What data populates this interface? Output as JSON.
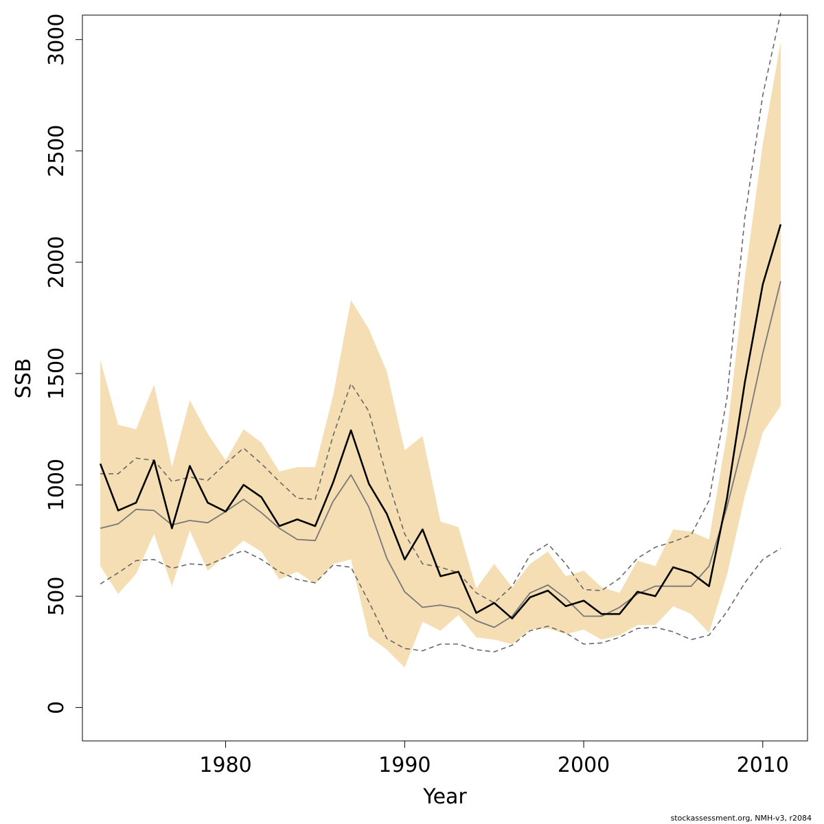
{
  "chart_data": {
    "type": "line",
    "xlabel": "Year",
    "ylabel": "SSB",
    "xlim": [
      1972,
      2012.5
    ],
    "ylim": [
      -150,
      3110
    ],
    "x_ticks": [
      1980,
      1990,
      2000,
      2010
    ],
    "y_ticks": [
      0,
      500,
      1000,
      1500,
      2000,
      2500,
      3000
    ],
    "grid": false,
    "colors": {
      "band": "#f5deb3",
      "main_line": "#000000",
      "previous_line": "#777777",
      "previous_bounds": "#666666"
    },
    "years": [
      1973,
      1974,
      1975,
      1976,
      1977,
      1978,
      1979,
      1980,
      1981,
      1982,
      1983,
      1984,
      1985,
      1986,
      1987,
      1988,
      1989,
      1990,
      1991,
      1992,
      1993,
      1994,
      1995,
      1996,
      1997,
      1998,
      1999,
      2000,
      2001,
      2002,
      2003,
      2004,
      2005,
      2006,
      2007,
      2008,
      2009,
      2010,
      2011
    ],
    "series": [
      {
        "role": "estimate",
        "values": [
          1095,
          885,
          920,
          1110,
          805,
          1085,
          920,
          880,
          1000,
          945,
          815,
          845,
          815,
          1010,
          1245,
          1005,
          870,
          665,
          800,
          590,
          610,
          425,
          470,
          400,
          495,
          525,
          455,
          480,
          420,
          420,
          520,
          500,
          630,
          605,
          545,
          940,
          1460,
          1900,
          2170
        ]
      },
      {
        "role": "previous_estimate",
        "values": [
          805,
          825,
          890,
          885,
          820,
          840,
          830,
          880,
          935,
          875,
          805,
          755,
          750,
          925,
          1045,
          900,
          670,
          520,
          450,
          460,
          445,
          390,
          360,
          410,
          515,
          550,
          490,
          410,
          410,
          450,
          510,
          545,
          545,
          545,
          635,
          900,
          1220,
          1590,
          1915
        ]
      },
      {
        "role": "previous_upper",
        "values": [
          1050,
          1050,
          1120,
          1110,
          1015,
          1035,
          1020,
          1095,
          1165,
          1095,
          1015,
          940,
          935,
          1220,
          1455,
          1330,
          1035,
          780,
          645,
          630,
          605,
          515,
          470,
          545,
          685,
          735,
          645,
          530,
          525,
          580,
          670,
          720,
          745,
          775,
          930,
          1390,
          2200,
          2750,
          3120
        ]
      },
      {
        "role": "previous_lower",
        "values": [
          555,
          605,
          660,
          665,
          625,
          645,
          640,
          675,
          705,
          665,
          610,
          575,
          560,
          640,
          630,
          475,
          310,
          265,
          255,
          285,
          285,
          260,
          250,
          280,
          345,
          365,
          335,
          285,
          290,
          315,
          355,
          360,
          340,
          305,
          325,
          430,
          560,
          665,
          715
        ]
      },
      {
        "role": "band_upper",
        "values": [
          1560,
          1270,
          1250,
          1450,
          1080,
          1380,
          1230,
          1110,
          1250,
          1190,
          1060,
          1080,
          1080,
          1400,
          1830,
          1700,
          1510,
          1155,
          1220,
          835,
          810,
          535,
          645,
          540,
          645,
          700,
          590,
          615,
          540,
          515,
          660,
          635,
          800,
          790,
          755,
          1230,
          1930,
          2530,
          2990
        ]
      },
      {
        "role": "band_lower",
        "values": [
          635,
          510,
          600,
          780,
          545,
          795,
          615,
          680,
          750,
          700,
          575,
          610,
          555,
          645,
          665,
          320,
          260,
          180,
          385,
          345,
          415,
          315,
          305,
          285,
          350,
          355,
          330,
          350,
          305,
          325,
          370,
          370,
          455,
          420,
          335,
          595,
          950,
          1235,
          1355
        ]
      }
    ]
  },
  "footer_text": "stockassessment.org, NMH-v3, r2084"
}
